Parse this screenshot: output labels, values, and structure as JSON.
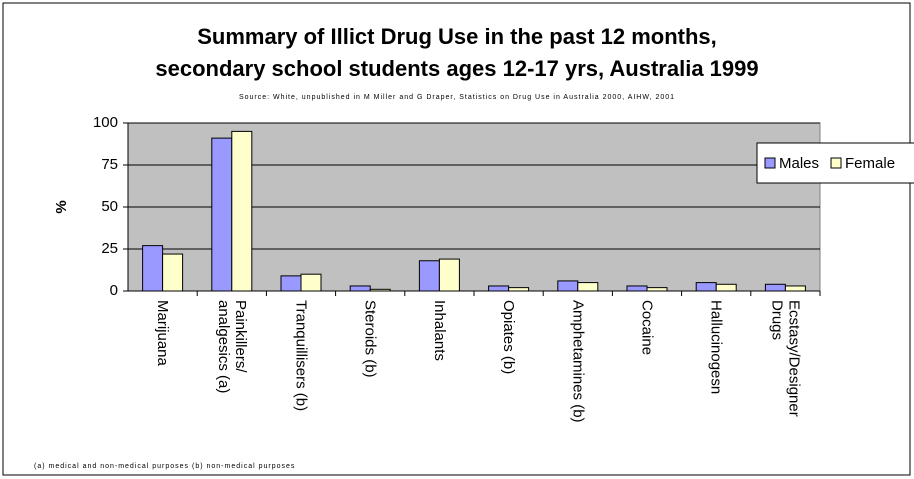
{
  "chart_data": {
    "type": "bar",
    "title": "Summary of Illict Drug Use in the past 12 months,",
    "subtitle": "secondary school students ages 12-17 yrs, Australia 1999",
    "source": "Source: White, unpublished in M Miller and G Draper, Statistics on Drug Use in Australia 2000, AIHW, 2001",
    "footnote": "(a) medical and non-medical purposes (b) non-medical purposes",
    "y_label": "%",
    "categories": [
      "Marijuana",
      "Painkillers/\nanalgesics (a)",
      "Tranquillisers (b)",
      "Steroids (b)",
      "Inhalants",
      "Opiates (b)",
      "Amphetamines (b)",
      "Cocaine",
      "Hallucinogesn",
      "Ecstasy/Designer\nDrugs"
    ],
    "series": [
      {
        "name": "Males",
        "color": "#9999ff",
        "values": [
          27,
          91,
          9,
          3,
          18,
          3,
          6,
          3,
          5,
          4
        ]
      },
      {
        "name": "Female",
        "color": "#ffffcc",
        "values": [
          22,
          95,
          10,
          1,
          19,
          2,
          5,
          2,
          4,
          3
        ]
      }
    ],
    "ylim": [
      0,
      100
    ],
    "yticks": [
      0,
      25,
      50,
      75,
      100
    ],
    "grid": true,
    "plot_background": "#c0c0c0",
    "legend": "right"
  }
}
